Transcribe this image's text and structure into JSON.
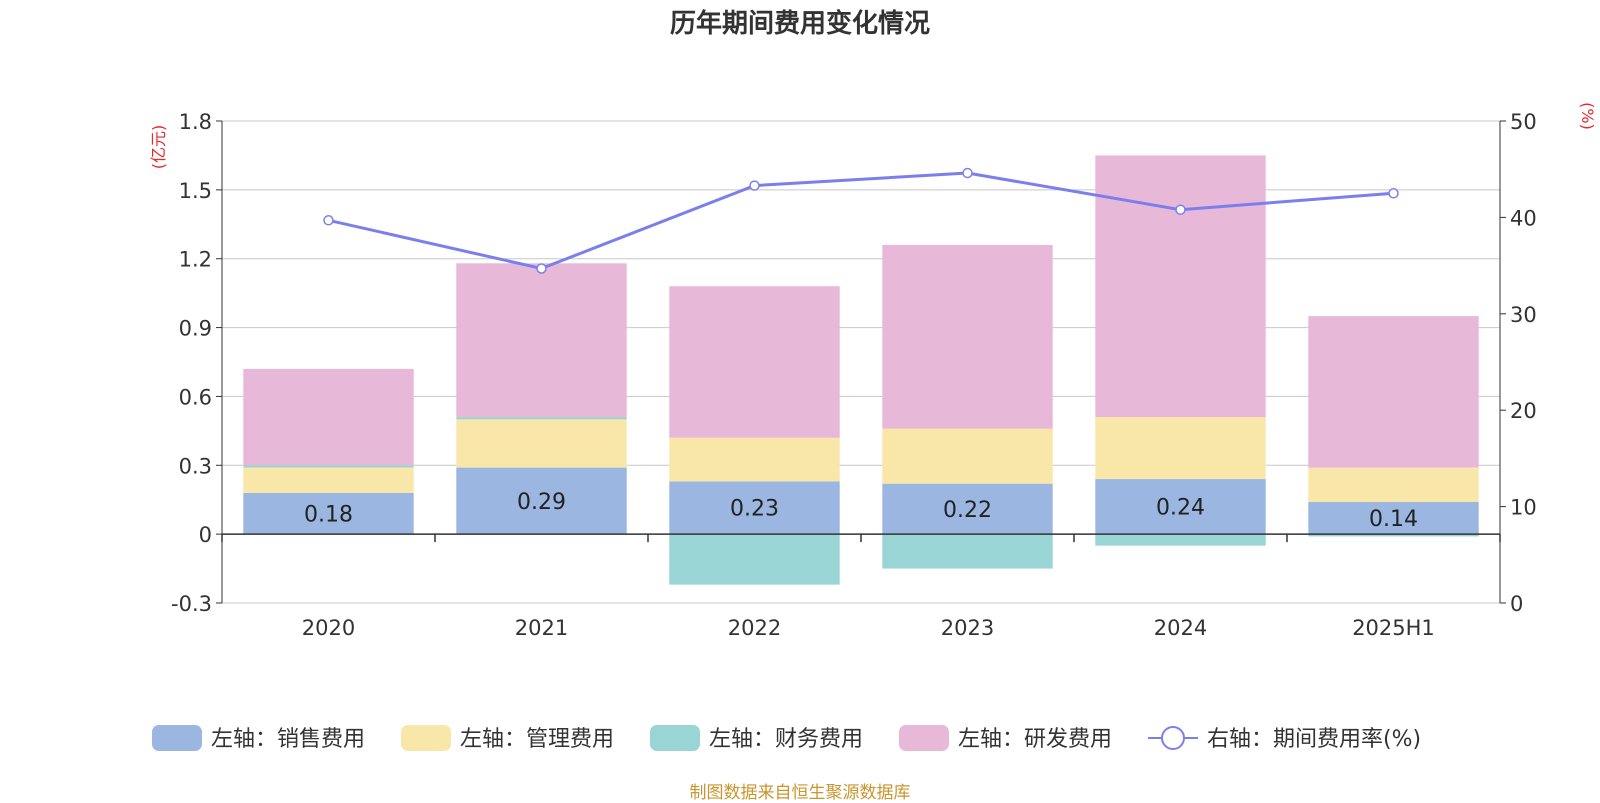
{
  "footer": {
    "source": "制图数据来自恒生聚源数据库"
  },
  "chart_data": {
    "type": "bar",
    "stacked": true,
    "title": "历年期间费用变化情况",
    "y_left_unit": "(亿元)",
    "y_right_unit": "(%)",
    "categories": [
      "2020",
      "2021",
      "2022",
      "2023",
      "2024",
      "2025H1"
    ],
    "ylim_left": [
      -0.3,
      1.8
    ],
    "yticks_left": [
      -0.3,
      0,
      0.3,
      0.6,
      0.9,
      1.2,
      1.5,
      1.8
    ],
    "ylim_right": [
      0,
      50
    ],
    "yticks_right": [
      0,
      10,
      20,
      30,
      40,
      50
    ],
    "grid": true,
    "legend_position": "bottom",
    "series": [
      {
        "name": "左轴：销售费用",
        "axis": "left",
        "color": "#9bb7e1",
        "values": [
          0.18,
          0.29,
          0.23,
          0.22,
          0.24,
          0.14
        ],
        "labels": [
          "0.18",
          "0.29",
          "0.23",
          "0.22",
          "0.24",
          "0.14"
        ]
      },
      {
        "name": "左轴：管理费用",
        "axis": "left",
        "color": "#f8e7a8",
        "values": [
          0.11,
          0.21,
          0.19,
          0.24,
          0.27,
          0.15
        ]
      },
      {
        "name": "左轴：财务费用",
        "axis": "left",
        "color": "#99d5d5",
        "values": [
          0.01,
          0.01,
          -0.22,
          -0.15,
          -0.05,
          -0.01
        ]
      },
      {
        "name": "左轴：研发费用",
        "axis": "left",
        "color": "#e8b8d9",
        "values": [
          0.42,
          0.67,
          0.66,
          0.8,
          1.14,
          0.66
        ]
      },
      {
        "name": "右轴：期间费用率(%)",
        "axis": "right",
        "type": "line",
        "color": "#7b7fec",
        "values": [
          39.7,
          34.7,
          43.3,
          44.6,
          40.8,
          42.5
        ]
      }
    ]
  }
}
